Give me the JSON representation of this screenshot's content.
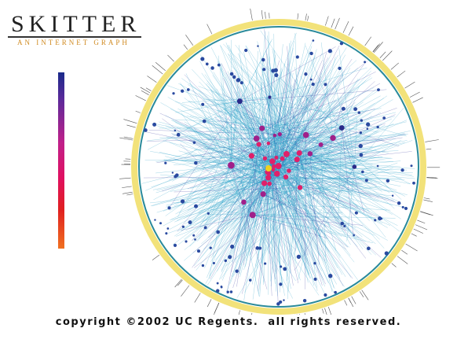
{
  "header": {
    "title": "SKITTER",
    "subtitle": "AN INTERNET GRAPH"
  },
  "footer": {
    "copyright": "copyright ©2002 UC Regents.  all rights reserved."
  }
}
